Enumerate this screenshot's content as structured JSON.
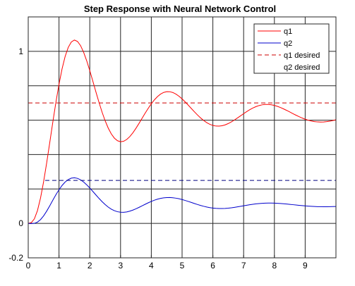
{
  "chart_data": {
    "type": "line",
    "title": "Step Response with Neural Network Control",
    "xlabel": "",
    "ylabel": "",
    "xlim": [
      0,
      10
    ],
    "ylim": [
      -0.2,
      1.2
    ],
    "grid": true,
    "legend_position": "top-right",
    "x_ticks": [
      0,
      1,
      2,
      3,
      4,
      5,
      6,
      7,
      8,
      9
    ],
    "x_tick_labels": [
      "0",
      "1",
      "2",
      "3",
      "4",
      "5",
      "6",
      "7",
      "8",
      "9"
    ],
    "y_ticks": [
      -0.2,
      0,
      1
    ],
    "y_tick_labels": [
      "-0.2",
      "0",
      "1"
    ],
    "y_grid_lines": [
      0,
      0.2,
      0.4,
      0.6,
      0.8,
      1
    ],
    "series": [
      {
        "name": "q1",
        "color": "#ff0000",
        "dash": "solid",
        "x": [
          0,
          0.1,
          0.2,
          0.3,
          0.4,
          0.5,
          0.6,
          0.7,
          0.8,
          0.9,
          1.0,
          1.1,
          1.2,
          1.3,
          1.4,
          1.5,
          1.6,
          1.7,
          1.8,
          1.9,
          2.0,
          2.1,
          2.2,
          2.3,
          2.4,
          2.5,
          2.6,
          2.7,
          2.8,
          2.9,
          3.0,
          3.1,
          3.2,
          3.3,
          3.4,
          3.5,
          3.6,
          3.7,
          3.8,
          3.9,
          4.0,
          4.1,
          4.2,
          4.3,
          4.4,
          4.5,
          4.6,
          4.7,
          4.8,
          4.9,
          5.0,
          5.1,
          5.2,
          5.3,
          5.4,
          5.5,
          5.6,
          5.7,
          5.8,
          5.9,
          6.0,
          6.1,
          6.2,
          6.3,
          6.4,
          6.5,
          6.6,
          6.7,
          6.8,
          6.9,
          7.0,
          7.1,
          7.2,
          7.3,
          7.4,
          7.5,
          7.6,
          7.7,
          7.8,
          7.9,
          8.0,
          8.1,
          8.2,
          8.3,
          8.4,
          8.5,
          8.6,
          8.7,
          8.8,
          8.9,
          9.0,
          9.1,
          9.2,
          9.3,
          9.4,
          9.5,
          9.6,
          9.7,
          9.8,
          9.9,
          10.0
        ],
        "y": [
          0,
          0.0045,
          0.0266,
          0.0746,
          0.148,
          0.2426,
          0.3523,
          0.4703,
          0.5897,
          0.7044,
          0.8089,
          0.8987,
          0.9707,
          1.0228,
          1.0543,
          1.0655,
          1.0578,
          1.0333,
          0.9947,
          0.9451,
          0.8879,
          0.8264,
          0.7638,
          0.703,
          0.6464,
          0.5962,
          0.5537,
          0.5199,
          0.4955,
          0.4805,
          0.4746,
          0.4773,
          0.4876,
          0.5044,
          0.5265,
          0.5525,
          0.5811,
          0.6109,
          0.6406,
          0.669,
          0.6951,
          0.718,
          0.7369,
          0.7514,
          0.761,
          0.7656,
          0.7653,
          0.7605,
          0.7515,
          0.739,
          0.7236,
          0.7061,
          0.6872,
          0.6678,
          0.6486,
          0.6302,
          0.6133,
          0.5983,
          0.5859,
          0.5761,
          0.5694,
          0.5658,
          0.5653,
          0.5677,
          0.5728,
          0.5803,
          0.5898,
          0.6008,
          0.6127,
          0.6252,
          0.6377,
          0.6497,
          0.6607,
          0.6705,
          0.6786,
          0.6849,
          0.6891,
          0.6913,
          0.6913,
          0.6893,
          0.6856,
          0.6801,
          0.6733,
          0.6653,
          0.6566,
          0.6474,
          0.6381,
          0.629,
          0.6204,
          0.6125,
          0.6055,
          0.5996,
          0.595,
          0.5917,
          0.5898,
          0.5891,
          0.5897,
          0.5914,
          0.5942,
          0.5979,
          0.6023
        ]
      },
      {
        "name": "q2",
        "color": "#0000cc",
        "dash": "solid",
        "x": [
          0,
          0.1,
          0.2,
          0.3,
          0.4,
          0.5,
          0.6,
          0.7,
          0.8,
          0.9,
          1.0,
          1.1,
          1.2,
          1.3,
          1.4,
          1.5,
          1.6,
          1.7,
          1.8,
          1.9,
          2.0,
          2.1,
          2.2,
          2.3,
          2.4,
          2.5,
          2.6,
          2.7,
          2.8,
          2.9,
          3.0,
          3.1,
          3.2,
          3.3,
          3.4,
          3.5,
          3.6,
          3.7,
          3.8,
          3.9,
          4.0,
          4.1,
          4.2,
          4.3,
          4.4,
          4.5,
          4.6,
          4.7,
          4.8,
          4.9,
          5.0,
          5.1,
          5.2,
          5.3,
          5.4,
          5.5,
          5.6,
          5.7,
          5.8,
          5.9,
          6.0,
          6.1,
          6.2,
          6.3,
          6.4,
          6.5,
          6.6,
          6.7,
          6.8,
          6.9,
          7.0,
          7.1,
          7.2,
          7.3,
          7.4,
          7.5,
          7.6,
          7.7,
          7.8,
          7.9,
          8.0,
          8.1,
          8.2,
          8.3,
          8.4,
          8.5,
          8.6,
          8.7,
          8.8,
          8.9,
          9.0,
          9.1,
          9.2,
          9.3,
          9.4,
          9.5,
          9.6,
          9.7,
          9.8,
          9.9,
          10.0
        ],
        "y": [
          0,
          -0.0008,
          0.0004,
          0.0075,
          0.0221,
          0.0439,
          0.0715,
          0.1026,
          0.1351,
          0.1667,
          0.1957,
          0.2207,
          0.2406,
          0.2548,
          0.263,
          0.2652,
          0.2618,
          0.2533,
          0.2405,
          0.2244,
          0.2058,
          0.1858,
          0.1654,
          0.1453,
          0.1265,
          0.1095,
          0.0948,
          0.0829,
          0.0739,
          0.0679,
          0.0649,
          0.0646,
          0.0668,
          0.0712,
          0.0773,
          0.0848,
          0.0932,
          0.1021,
          0.1111,
          0.1198,
          0.1278,
          0.1349,
          0.1407,
          0.1453,
          0.1485,
          0.1501,
          0.1503,
          0.1492,
          0.1467,
          0.1432,
          0.1387,
          0.1334,
          0.1277,
          0.1218,
          0.1158,
          0.1099,
          0.1045,
          0.0996,
          0.0953,
          0.0918,
          0.0892,
          0.0874,
          0.0866,
          0.0866,
          0.0873,
          0.0888,
          0.0908,
          0.0934,
          0.0962,
          0.0993,
          0.1024,
          0.1055,
          0.1085,
          0.1112,
          0.1135,
          0.1154,
          0.1169,
          0.1178,
          0.1183,
          0.1182,
          0.1178,
          0.1169,
          0.1157,
          0.1143,
          0.1126,
          0.1108,
          0.1088,
          0.1069,
          0.105,
          0.1033,
          0.1017,
          0.1003,
          0.0991,
          0.0982,
          0.0975,
          0.0971,
          0.0969,
          0.097,
          0.0973,
          0.0977,
          0.0983
        ]
      },
      {
        "name": "q1 desired",
        "color": "#cc0000",
        "dash": "dashed",
        "x": [
          0,
          10
        ],
        "y": [
          0.7,
          0.7
        ]
      },
      {
        "name": "q2 desired",
        "color": "#000080",
        "dash": "dashed",
        "x": [
          0.55,
          10
        ],
        "y": [
          0.25,
          0.25
        ]
      }
    ]
  }
}
